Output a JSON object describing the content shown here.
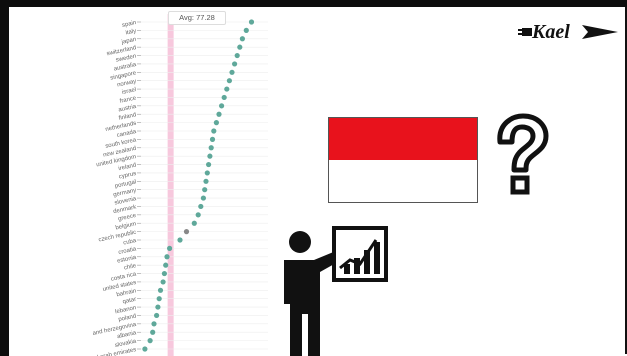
{
  "chart_data": {
    "type": "scatter",
    "title": "",
    "xlabel": "",
    "ylabel": "",
    "average": 77.28,
    "average_label": "Avg: 77.28",
    "categories": [
      "spain",
      "italy",
      "japan",
      "switzerland",
      "sweden",
      "australia",
      "singapore",
      "norway",
      "israel",
      "france",
      "austria",
      "finland",
      "netherlands",
      "canada",
      "south korea",
      "new zealand",
      "united kingdom",
      "ireland",
      "cyprus",
      "portugal",
      "germany",
      "slovenia",
      "denmark",
      "greece",
      "belgium",
      "czech republic",
      "cuba",
      "croatia",
      "estonia",
      "chile",
      "costa rica",
      "united states",
      "bahrain",
      "qatar",
      "lebanon",
      "poland",
      "and herzegovina",
      "albania",
      "slovakia",
      "ed arab emirates"
    ],
    "values": [
      83.5,
      83.1,
      82.8,
      82.6,
      82.4,
      82.2,
      82.0,
      81.8,
      81.6,
      81.4,
      81.2,
      81.0,
      80.8,
      80.6,
      80.5,
      80.4,
      80.3,
      80.2,
      80.1,
      80.0,
      79.9,
      79.8,
      79.6,
      79.4,
      79.1,
      78.5,
      78.0,
      77.2,
      77.0,
      76.9,
      76.8,
      76.7,
      76.5,
      76.4,
      76.3,
      76.2,
      76.0,
      75.9,
      75.7,
      75.3
    ],
    "highlight_index": 25,
    "colors": {
      "point": "#5fa89a",
      "highlight": "#888888",
      "avg_band": "#f7c8dd",
      "grid": "#eeeeee"
    }
  },
  "logo": {
    "text": "Kael"
  },
  "flag": {
    "top_color": "#e8121c",
    "bottom_color": "#ffffff"
  },
  "icons": {
    "question": "question-mark-icon",
    "presenter": "presenter-chart-icon"
  }
}
